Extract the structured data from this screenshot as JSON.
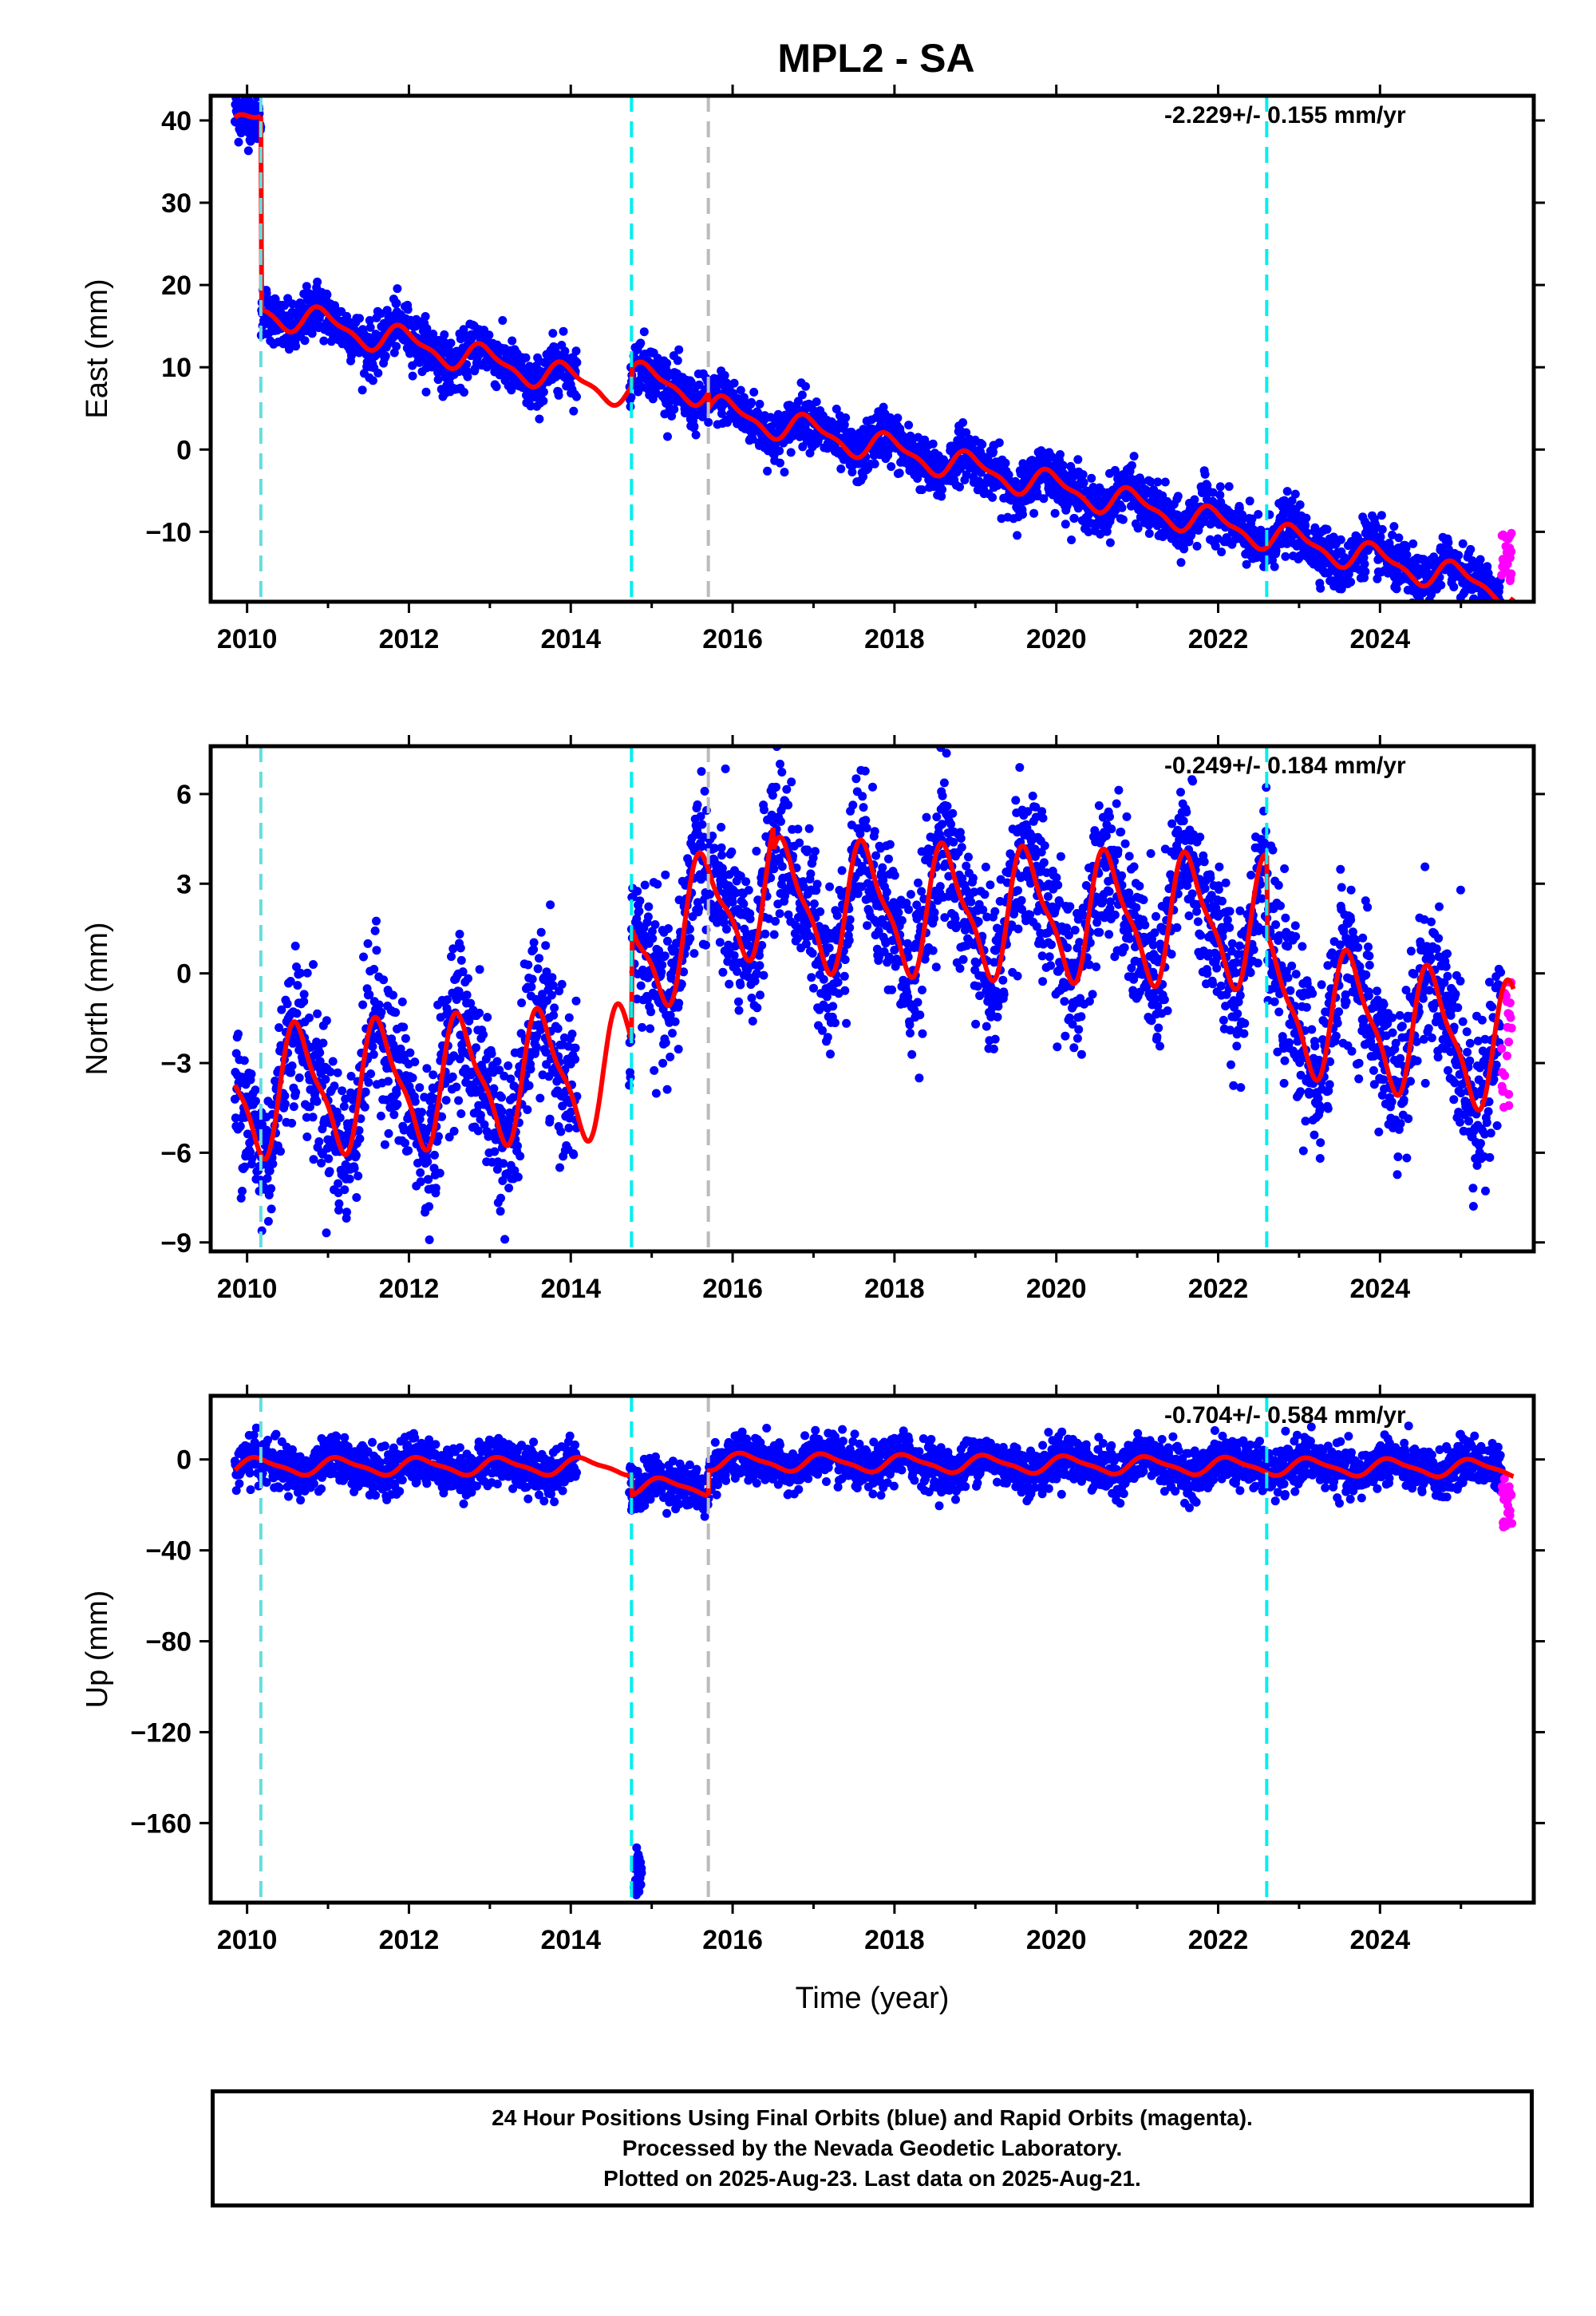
{
  "title": "MPL2 - SA",
  "footer": {
    "line1": "24 Hour Positions Using Final Orbits (blue) and Rapid Orbits (magenta).",
    "line2": "Processed by the Nevada Geodetic Laboratory.",
    "line3": "Plotted on 2025-Aug-23. Last data on 2025-Aug-21."
  },
  "colors": {
    "final_orbits": "#0000ff",
    "rapid_orbits": "#ff00ff",
    "model_fit": "#ff0000",
    "antenna_change": "#66dddd",
    "equipment_change": "#00eeee",
    "other_event": "#bbbbbb"
  },
  "chart_data": [
    {
      "type": "scatter",
      "panel": "east",
      "ylabel": "East (mm)",
      "xlabel": "",
      "rate_label": "-2.229+/- 0.155 mm/yr",
      "xlim": [
        2009.55,
        2025.9
      ],
      "ylim": [
        -18.5,
        43
      ],
      "yticks": [
        40,
        30,
        20,
        10,
        0,
        -10
      ],
      "yticklabels": [
        "40",
        "30",
        "20",
        "10",
        "0",
        "−10"
      ],
      "xticks": [
        2010,
        2012,
        2014,
        2016,
        2018,
        2020,
        2022,
        2024
      ],
      "grid": false,
      "events": [
        {
          "x": 2010.17,
          "kind": "antenna_change"
        },
        {
          "x": 2014.75,
          "kind": "equipment_change"
        },
        {
          "x": 2015.7,
          "kind": "other_event"
        },
        {
          "x": 2022.6,
          "kind": "equipment_change"
        }
      ],
      "model": {
        "gap": [
          2014.08,
          2014.72
        ],
        "segments": [
          {
            "from": 2009.85,
            "to": 2010.17,
            "offset": 38.5,
            "slope": 6.0
          },
          {
            "from": 2010.17,
            "to": 2014.75,
            "offset": 17.0,
            "slope": -2.229
          },
          {
            "from": 2014.75,
            "to": 2015.7,
            "offset": 9.0,
            "slope": -2.229
          },
          {
            "from": 2015.7,
            "to": 2025.65,
            "offset": 5.0,
            "slope": -2.229
          }
        ],
        "amp": 1.6,
        "amp2": 0.6,
        "phase": 0.3
      },
      "scatter_noise": 1.6,
      "rapid": {
        "from": 2025.5,
        "to": 2025.63,
        "center": -13,
        "spread": 3
      }
    },
    {
      "type": "scatter",
      "panel": "north",
      "ylabel": "North (mm)",
      "xlabel": "",
      "rate_label": "-0.249+/- 0.184 mm/yr",
      "xlim": [
        2009.55,
        2025.9
      ],
      "ylim": [
        -9.3,
        7.6
      ],
      "yticks": [
        6,
        3,
        0,
        -3,
        -6,
        -9
      ],
      "yticklabels": [
        "6",
        "3",
        "0",
        "−3",
        "−6",
        "−9"
      ],
      "xticks": [
        2010,
        2012,
        2014,
        2016,
        2018,
        2020,
        2022,
        2024
      ],
      "grid": false,
      "events": [
        {
          "x": 2010.17,
          "kind": "antenna_change"
        },
        {
          "x": 2014.75,
          "kind": "equipment_change"
        },
        {
          "x": 2015.7,
          "kind": "other_event"
        },
        {
          "x": 2022.6,
          "kind": "equipment_change"
        }
      ],
      "model": {
        "gap": [
          2014.08,
          2014.72
        ],
        "segments": [
          {
            "from": 2009.85,
            "to": 2014.75,
            "offset": -4.0,
            "slope": 0.15
          },
          {
            "from": 2014.75,
            "to": 2016.5,
            "offset": 0.5,
            "slope": 1.5
          },
          {
            "from": 2016.5,
            "to": 2022.6,
            "offset": 2.3,
            "slope": -0.1
          },
          {
            "from": 2022.6,
            "to": 2025.65,
            "offset": -1.0,
            "slope": -0.5
          }
        ],
        "amp": 2.0,
        "amp2": 0.6,
        "phase": 0.6
      },
      "scatter_noise": 1.3,
      "rapid": {
        "from": 2025.5,
        "to": 2025.63,
        "center": -2.5,
        "spread": 2.5
      }
    },
    {
      "type": "scatter",
      "panel": "up",
      "ylabel": "Up (mm)",
      "xlabel": "Time (year)",
      "rate_label": "-0.704+/- 0.584 mm/yr",
      "xlim": [
        2009.55,
        2025.9
      ],
      "ylim": [
        -195,
        28
      ],
      "yticks": [
        0,
        -40,
        -80,
        -120,
        -160
      ],
      "yticklabels": [
        "0",
        "−40",
        "−80",
        "−120",
        "−160"
      ],
      "xticks": [
        2010,
        2012,
        2014,
        2016,
        2018,
        2020,
        2022,
        2024
      ],
      "grid": false,
      "events": [
        {
          "x": 2010.17,
          "kind": "antenna_change"
        },
        {
          "x": 2014.75,
          "kind": "equipment_change"
        },
        {
          "x": 2015.7,
          "kind": "other_event"
        },
        {
          "x": 2022.6,
          "kind": "equipment_change"
        }
      ],
      "model": {
        "gap": [
          2014.08,
          2014.72
        ],
        "segments": [
          {
            "from": 2009.85,
            "to": 2014.75,
            "offset": -3.0,
            "slope": 0.0
          },
          {
            "from": 2014.75,
            "to": 2015.7,
            "offset": -12.0,
            "slope": 0.0
          },
          {
            "from": 2015.7,
            "to": 2025.65,
            "offset": -1.0,
            "slope": -0.3
          }
        ],
        "amp": 3.5,
        "amp2": 1.0,
        "phase": 0.1
      },
      "scatter_noise": 5.0,
      "offset_cluster": {
        "from": 2014.78,
        "to": 2014.88,
        "center": -180,
        "spread": 6
      },
      "rapid": {
        "from": 2025.5,
        "to": 2025.63,
        "center": -20,
        "spread": 12
      }
    }
  ]
}
